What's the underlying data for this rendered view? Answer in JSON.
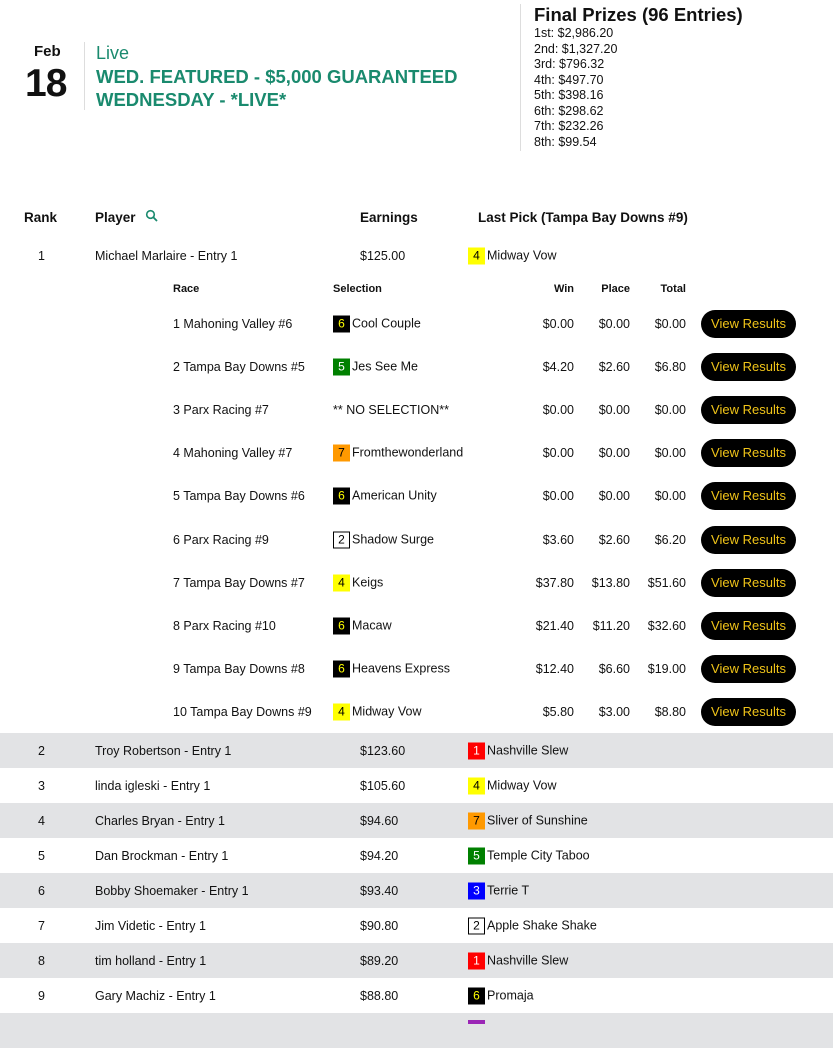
{
  "event": {
    "month": "Feb",
    "day": "18",
    "status": "Live",
    "title": "WED. FEATURED - $5,000 GUARANTEED WEDNESDAY - *LIVE*"
  },
  "prizes": {
    "heading": "Final Prizes (96 Entries)",
    "items": [
      "1st: $2,986.20",
      "2nd: $1,327.20",
      "3rd: $796.32",
      "4th: $497.70",
      "5th: $398.16",
      "6th: $298.62",
      "7th: $232.26",
      "8th: $99.54"
    ]
  },
  "columns": {
    "rank": "Rank",
    "player": "Player",
    "earnings": "Earnings",
    "last_pick": "Last Pick (Tampa Bay Downs #9)"
  },
  "saddle_colors": {
    "1": {
      "bg": "#ff0000",
      "fg": "#ffffff"
    },
    "2": {
      "bg": "#ffffff",
      "fg": "#000000"
    },
    "3": {
      "bg": "#0000ff",
      "fg": "#ffffff"
    },
    "4": {
      "bg": "#ffff00",
      "fg": "#000000"
    },
    "5": {
      "bg": "#008000",
      "fg": "#ffffff"
    },
    "6": {
      "bg": "#000000",
      "fg": "#ffff00"
    },
    "7": {
      "bg": "#ff9900",
      "fg": "#000000"
    },
    "8": {
      "bg": "#9b26b6",
      "fg": "#ffffff"
    }
  },
  "players": [
    {
      "rank": "1",
      "name": "Michael Marlaire - Entry 1",
      "earnings": "$125.00",
      "pick_num": "4",
      "pick": "Midway Vow"
    },
    {
      "rank": "2",
      "name": "Troy Robertson - Entry 1",
      "earnings": "$123.60",
      "pick_num": "1",
      "pick": "Nashville Slew"
    },
    {
      "rank": "3",
      "name": "linda igleski - Entry 1",
      "earnings": "$105.60",
      "pick_num": "4",
      "pick": "Midway Vow"
    },
    {
      "rank": "4",
      "name": "Charles Bryan - Entry 1",
      "earnings": "$94.60",
      "pick_num": "7",
      "pick": "Sliver of Sunshine"
    },
    {
      "rank": "5",
      "name": "Dan Brockman - Entry 1",
      "earnings": "$94.20",
      "pick_num": "5",
      "pick": "Temple City Taboo"
    },
    {
      "rank": "6",
      "name": "Bobby Shoemaker - Entry 1",
      "earnings": "$93.40",
      "pick_num": "3",
      "pick": "Terrie T"
    },
    {
      "rank": "7",
      "name": "Jim Videtic - Entry 1",
      "earnings": "$90.80",
      "pick_num": "2",
      "pick": "Apple Shake Shake"
    },
    {
      "rank": "8",
      "name": "tim holland - Entry 1",
      "earnings": "$89.20",
      "pick_num": "1",
      "pick": "Nashville Slew"
    },
    {
      "rank": "9",
      "name": "Gary Machiz - Entry 1",
      "earnings": "$88.80",
      "pick_num": "6",
      "pick": "Promaja"
    }
  ],
  "detail": {
    "headers": {
      "race": "Race",
      "selection": "Selection",
      "win": "Win",
      "place": "Place",
      "total": "Total"
    },
    "button_label": "View Results",
    "races": [
      {
        "race": "1 Mahoning Valley #6",
        "num": "6",
        "selection": "Cool Couple",
        "win": "$0.00",
        "place": "$0.00",
        "total": "$0.00"
      },
      {
        "race": "2 Tampa Bay Downs #5",
        "num": "5",
        "selection": "Jes See Me",
        "win": "$4.20",
        "place": "$2.60",
        "total": "$6.80"
      },
      {
        "race": "3 Parx Racing #7",
        "num": "",
        "selection": "** NO SELECTION**",
        "win": "$0.00",
        "place": "$0.00",
        "total": "$0.00"
      },
      {
        "race": "4 Mahoning Valley #7",
        "num": "7",
        "selection": "Fromthewonderland",
        "win": "$0.00",
        "place": "$0.00",
        "total": "$0.00"
      },
      {
        "race": "5 Tampa Bay Downs #6",
        "num": "6",
        "selection": "American Unity",
        "win": "$0.00",
        "place": "$0.00",
        "total": "$0.00"
      },
      {
        "race": "6 Parx Racing #9",
        "num": "2",
        "selection": "Shadow Surge",
        "win": "$3.60",
        "place": "$2.60",
        "total": "$6.20"
      },
      {
        "race": "7 Tampa Bay Downs #7",
        "num": "4",
        "selection": "Keigs",
        "win": "$37.80",
        "place": "$13.80",
        "total": "$51.60"
      },
      {
        "race": "8 Parx Racing #10",
        "num": "6",
        "selection": "Macaw",
        "win": "$21.40",
        "place": "$11.20",
        "total": "$32.60"
      },
      {
        "race": "9 Tampa Bay Downs #8",
        "num": "6",
        "selection": "Heavens Express",
        "win": "$12.40",
        "place": "$6.60",
        "total": "$19.00"
      },
      {
        "race": "10 Tampa Bay Downs #9",
        "num": "4",
        "selection": "Midway Vow",
        "win": "$5.80",
        "place": "$3.00",
        "total": "$8.80"
      }
    ]
  }
}
